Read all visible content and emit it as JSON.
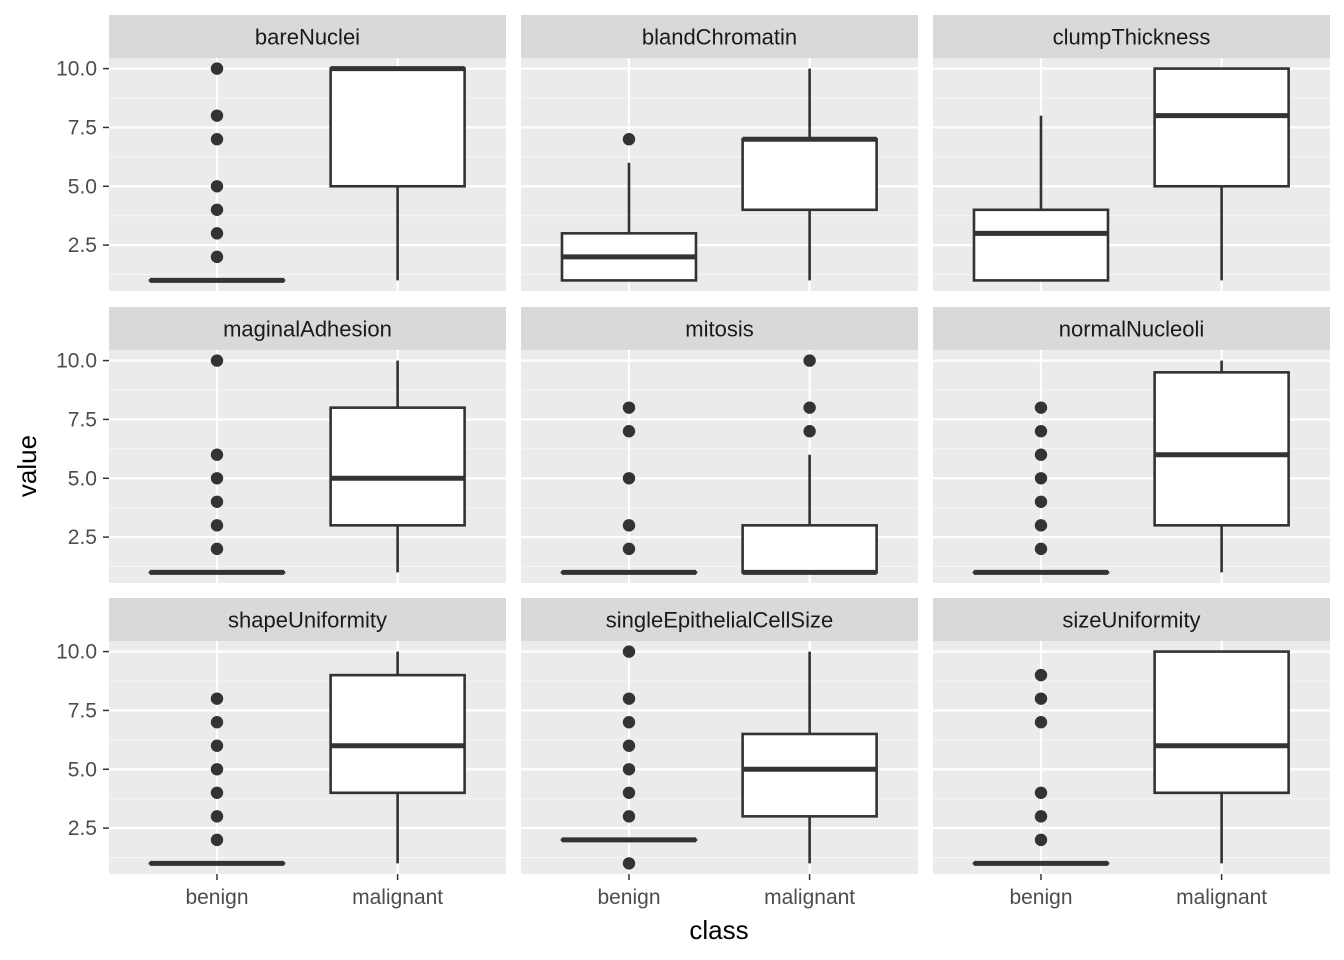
{
  "chart_data": {
    "type": "boxplot",
    "layout": "facet grid 3x3",
    "xlabel": "class",
    "ylabel": "value",
    "categories": [
      "benign",
      "malignant"
    ],
    "y_ticks": [
      "2.5",
      "5.0",
      "7.5",
      "10.0"
    ],
    "ylim": [
      0.55,
      10.45
    ],
    "grid": true,
    "colors": {
      "panel_bg": "#EBEBEB",
      "strip_bg": "#D9D9D9",
      "grid_major": "#FFFFFF",
      "box_fill": "#FFFFFF",
      "box_line": "#333333",
      "outlier": "#333333"
    },
    "facets": [
      {
        "name": "bareNuclei",
        "boxes": [
          {
            "category": "benign",
            "q1": 1,
            "median": 1,
            "q3": 1,
            "whisker_low": 1,
            "whisker_high": 1,
            "outliers": [
              2,
              3,
              4,
              5,
              7,
              8,
              10
            ]
          },
          {
            "category": "malignant",
            "q1": 5,
            "median": 10,
            "q3": 10,
            "whisker_low": 1,
            "whisker_high": 10,
            "outliers": []
          }
        ]
      },
      {
        "name": "blandChromatin",
        "boxes": [
          {
            "category": "benign",
            "q1": 1,
            "median": 2,
            "q3": 3,
            "whisker_low": 1,
            "whisker_high": 6,
            "outliers": [
              7
            ]
          },
          {
            "category": "malignant",
            "q1": 4,
            "median": 7,
            "q3": 7,
            "whisker_low": 1,
            "whisker_high": 10,
            "outliers": []
          }
        ]
      },
      {
        "name": "clumpThickness",
        "boxes": [
          {
            "category": "benign",
            "q1": 1,
            "median": 3,
            "q3": 4,
            "whisker_low": 1,
            "whisker_high": 8,
            "outliers": []
          },
          {
            "category": "malignant",
            "q1": 5,
            "median": 8,
            "q3": 10,
            "whisker_low": 1,
            "whisker_high": 10,
            "outliers": []
          }
        ]
      },
      {
        "name": "maginalAdhesion",
        "boxes": [
          {
            "category": "benign",
            "q1": 1,
            "median": 1,
            "q3": 1,
            "whisker_low": 1,
            "whisker_high": 1,
            "outliers": [
              2,
              3,
              4,
              5,
              6,
              10
            ]
          },
          {
            "category": "malignant",
            "q1": 3,
            "median": 5,
            "q3": 8,
            "whisker_low": 1,
            "whisker_high": 10,
            "outliers": []
          }
        ]
      },
      {
        "name": "mitosis",
        "boxes": [
          {
            "category": "benign",
            "q1": 1,
            "median": 1,
            "q3": 1,
            "whisker_low": 1,
            "whisker_high": 1,
            "outliers": [
              2,
              3,
              5,
              7,
              8
            ]
          },
          {
            "category": "malignant",
            "q1": 1,
            "median": 1,
            "q3": 3,
            "whisker_low": 1,
            "whisker_high": 6,
            "outliers": [
              7,
              8,
              10
            ]
          }
        ]
      },
      {
        "name": "normalNucleoli",
        "boxes": [
          {
            "category": "benign",
            "q1": 1,
            "median": 1,
            "q3": 1,
            "whisker_low": 1,
            "whisker_high": 1,
            "outliers": [
              2,
              3,
              4,
              5,
              6,
              7,
              8
            ]
          },
          {
            "category": "malignant",
            "q1": 3,
            "median": 6,
            "q3": 9.5,
            "whisker_low": 1,
            "whisker_high": 10,
            "outliers": []
          }
        ]
      },
      {
        "name": "shapeUniformity",
        "boxes": [
          {
            "category": "benign",
            "q1": 1,
            "median": 1,
            "q3": 1,
            "whisker_low": 1,
            "whisker_high": 1,
            "outliers": [
              2,
              3,
              4,
              5,
              6,
              7,
              8
            ]
          },
          {
            "category": "malignant",
            "q1": 4,
            "median": 6,
            "q3": 9,
            "whisker_low": 1,
            "whisker_high": 10,
            "outliers": []
          }
        ]
      },
      {
        "name": "singleEpithelialCellSize",
        "boxes": [
          {
            "category": "benign",
            "q1": 2,
            "median": 2,
            "q3": 2,
            "whisker_low": 2,
            "whisker_high": 2,
            "outliers": [
              1,
              3,
              4,
              5,
              6,
              7,
              8,
              10
            ]
          },
          {
            "category": "malignant",
            "q1": 3,
            "median": 5,
            "q3": 6.5,
            "whisker_low": 1,
            "whisker_high": 10,
            "outliers": []
          }
        ]
      },
      {
        "name": "sizeUniformity",
        "boxes": [
          {
            "category": "benign",
            "q1": 1,
            "median": 1,
            "q3": 1,
            "whisker_low": 1,
            "whisker_high": 1,
            "outliers": [
              2,
              3,
              4,
              7,
              8,
              9
            ]
          },
          {
            "category": "malignant",
            "q1": 4,
            "median": 6,
            "q3": 10,
            "whisker_low": 1,
            "whisker_high": 10,
            "outliers": []
          }
        ]
      }
    ]
  }
}
